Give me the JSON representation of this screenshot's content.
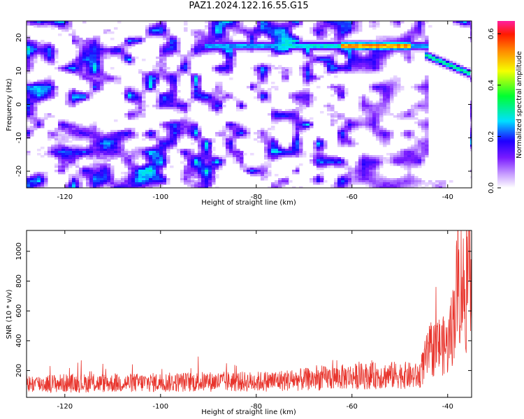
{
  "title": "PAZ1.2024.122.16.55.G15",
  "chart_data": [
    {
      "type": "heatmap",
      "xlabel": "Height of straight line (km)",
      "ylabel": "Frequency (Hz)",
      "xlim": [
        -128,
        -35
      ],
      "ylim": [
        -25,
        25
      ],
      "xticks": [
        -120,
        -100,
        -80,
        -60,
        -40
      ],
      "yticks": [
        -20,
        -10,
        0,
        10,
        20
      ],
      "colorbar": {
        "label": "Normalized spectral amplitude",
        "range": [
          0,
          0.65
        ],
        "ticks": [
          0.0,
          0.2,
          0.4,
          0.6
        ],
        "colormap": "rainbow (white-violet-blue-cyan-green-yellow-orange-red-magenta)"
      },
      "features": [
        {
          "x_range": [
            -91,
            -44
          ],
          "frequency": 17.5,
          "amplitude": "up to ~0.6"
        },
        {
          "x_range": [
            -45,
            -35
          ],
          "frequency_start": 15,
          "frequency_end": 9,
          "amplitude": "~0.3"
        }
      ],
      "background_amplitude": "mostly 0.0–0.15 (white/violet), weaker above -45 km"
    },
    {
      "type": "line",
      "xlabel": "Height of straight line (km)",
      "ylabel": "SNR (10 * v/v)",
      "xlim": [
        -128,
        -35
      ],
      "ylim": [
        20,
        1140
      ],
      "xticks": [
        -120,
        -100,
        -80,
        -60,
        -40
      ],
      "yticks": [
        200,
        400,
        600,
        800,
        1000
      ],
      "series": [
        {
          "color": "#e8342c",
          "x": [
            -128,
            -120,
            -110,
            -100,
            -90,
            -80,
            -70,
            -60,
            -50,
            -46,
            -44,
            -42,
            -40,
            -39,
            -38,
            -37,
            -36,
            -35
          ],
          "y": [
            110,
            115,
            115,
            120,
            125,
            125,
            140,
            160,
            170,
            160,
            320,
            370,
            360,
            500,
            750,
            800,
            650,
            1100
          ]
        }
      ]
    }
  ]
}
